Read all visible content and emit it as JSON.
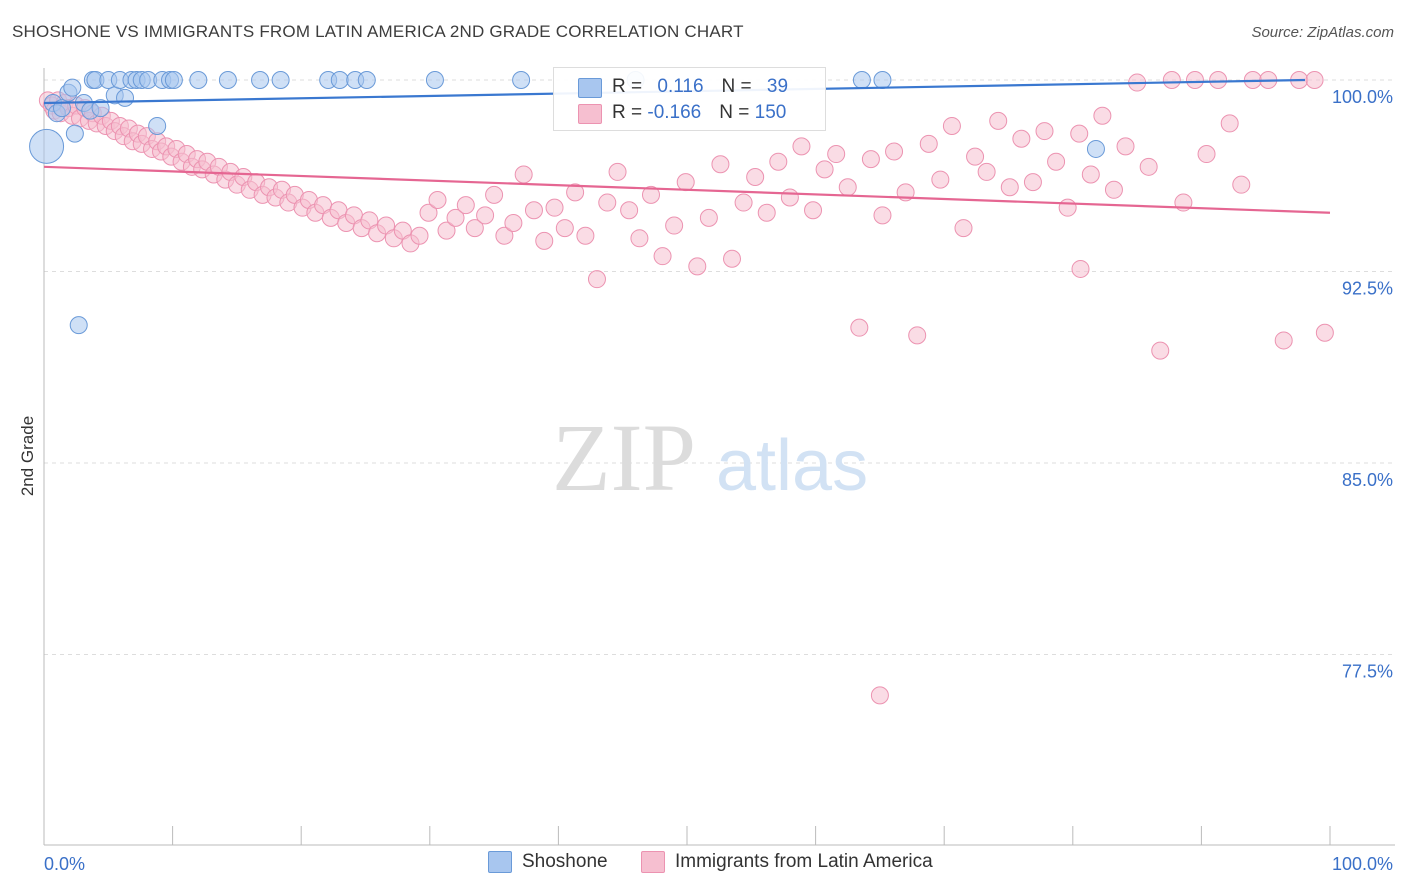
{
  "title": "SHOSHONE VS IMMIGRANTS FROM LATIN AMERICA 2ND GRADE CORRELATION CHART",
  "source": "Source: ZipAtlas.com",
  "watermark": {
    "zip": "ZIP",
    "atlas": "atlas"
  },
  "legend": {
    "rows": [
      {
        "r_label": "R = ",
        "r_value": "0.116",
        "n_label": "N = ",
        "n_value": "39"
      },
      {
        "r_label": "R = ",
        "r_value": "-0.166",
        "n_label": "N = ",
        "n_value": "150"
      }
    ]
  },
  "bottom_legend": [
    "Shoshone",
    "Immigrants from Latin America"
  ],
  "colors": {
    "blue_fill": "#a8c6ef",
    "blue_stroke": "#6a9ad8",
    "blue_line": "#3a78d0",
    "pink_fill": "#f6bfd0",
    "pink_stroke": "#ec93b1",
    "pink_line": "#e56692",
    "axis_label": "#3a70c8",
    "grid": "#dddddd"
  },
  "chart_data": {
    "type": "scatter",
    "title": "SHOSHONE VS IMMIGRANTS FROM LATIN AMERICA 2ND GRADE CORRELATION CHART",
    "xlabel": "",
    "ylabel": "2nd Grade",
    "xlim": [
      0,
      100
    ],
    "ylim": [
      70.0,
      101.0
    ],
    "x_tick_labels": [
      "0.0%",
      "100.0%"
    ],
    "y_ticks": [
      100.0,
      92.5,
      85.0,
      77.5
    ],
    "y_tick_labels": [
      "100.0%",
      "92.5%",
      "85.0%",
      "77.5%"
    ],
    "grid": true,
    "legend_position": "top-center",
    "series": [
      {
        "name": "Shoshone",
        "color": "#6a9ad8",
        "r": 0.116,
        "n": 39,
        "trend": [
          [
            0,
            99.1
          ],
          [
            100,
            100.0
          ]
        ],
        "points": [
          [
            0.2,
            97.4
          ],
          [
            0.7,
            99.1
          ],
          [
            1.0,
            98.7
          ],
          [
            1.4,
            98.9
          ],
          [
            1.9,
            99.5
          ],
          [
            2.2,
            99.7
          ],
          [
            2.4,
            97.9
          ],
          [
            2.7,
            90.4
          ],
          [
            3.1,
            99.1
          ],
          [
            3.6,
            98.8
          ],
          [
            3.8,
            100.0
          ],
          [
            4.0,
            100.0
          ],
          [
            4.4,
            98.9
          ],
          [
            5.0,
            100.0
          ],
          [
            5.5,
            99.4
          ],
          [
            5.9,
            100.0
          ],
          [
            6.3,
            99.3
          ],
          [
            6.8,
            100.0
          ],
          [
            7.2,
            100.0
          ],
          [
            7.6,
            100.0
          ],
          [
            8.1,
            100.0
          ],
          [
            8.8,
            98.2
          ],
          [
            9.2,
            100.0
          ],
          [
            9.8,
            100.0
          ],
          [
            10.1,
            100.0
          ],
          [
            12.0,
            100.0
          ],
          [
            14.3,
            100.0
          ],
          [
            16.8,
            100.0
          ],
          [
            18.4,
            100.0
          ],
          [
            22.1,
            100.0
          ],
          [
            23.0,
            100.0
          ],
          [
            24.2,
            100.0
          ],
          [
            25.1,
            100.0
          ],
          [
            30.4,
            100.0
          ],
          [
            37.1,
            100.0
          ],
          [
            46.0,
            100.0
          ],
          [
            63.6,
            100.0
          ],
          [
            65.2,
            100.0
          ],
          [
            81.8,
            97.3
          ]
        ]
      },
      {
        "name": "Immigrants from Latin America",
        "color": "#ec93b1",
        "r": -0.166,
        "n": 150,
        "trend": [
          [
            0,
            96.6
          ],
          [
            100,
            94.8
          ]
        ],
        "points": [
          [
            0.3,
            99.2
          ],
          [
            0.6,
            99.0
          ],
          [
            0.8,
            98.8
          ],
          [
            1.1,
            99.2
          ],
          [
            1.3,
            98.7
          ],
          [
            1.6,
            99.1
          ],
          [
            1.9,
            98.9
          ],
          [
            2.2,
            98.6
          ],
          [
            2.5,
            99.0
          ],
          [
            2.8,
            98.5
          ],
          [
            3.2,
            98.9
          ],
          [
            3.5,
            98.4
          ],
          [
            3.8,
            98.7
          ],
          [
            4.1,
            98.3
          ],
          [
            4.5,
            98.6
          ],
          [
            4.8,
            98.2
          ],
          [
            5.2,
            98.4
          ],
          [
            5.5,
            98.0
          ],
          [
            5.9,
            98.2
          ],
          [
            6.2,
            97.8
          ],
          [
            6.6,
            98.1
          ],
          [
            6.9,
            97.6
          ],
          [
            7.3,
            97.9
          ],
          [
            7.6,
            97.5
          ],
          [
            8.0,
            97.8
          ],
          [
            8.4,
            97.3
          ],
          [
            8.8,
            97.6
          ],
          [
            9.1,
            97.2
          ],
          [
            9.5,
            97.4
          ],
          [
            9.9,
            97.0
          ],
          [
            10.3,
            97.3
          ],
          [
            10.7,
            96.8
          ],
          [
            11.1,
            97.1
          ],
          [
            11.5,
            96.6
          ],
          [
            11.9,
            96.9
          ],
          [
            12.3,
            96.5
          ],
          [
            12.7,
            96.8
          ],
          [
            13.2,
            96.3
          ],
          [
            13.6,
            96.6
          ],
          [
            14.1,
            96.1
          ],
          [
            14.5,
            96.4
          ],
          [
            15.0,
            95.9
          ],
          [
            15.5,
            96.2
          ],
          [
            16.0,
            95.7
          ],
          [
            16.5,
            96.0
          ],
          [
            17.0,
            95.5
          ],
          [
            17.5,
            95.8
          ],
          [
            18.0,
            95.4
          ],
          [
            18.5,
            95.7
          ],
          [
            19.0,
            95.2
          ],
          [
            19.5,
            95.5
          ],
          [
            20.1,
            95.0
          ],
          [
            20.6,
            95.3
          ],
          [
            21.1,
            94.8
          ],
          [
            21.7,
            95.1
          ],
          [
            22.3,
            94.6
          ],
          [
            22.9,
            94.9
          ],
          [
            23.5,
            94.4
          ],
          [
            24.1,
            94.7
          ],
          [
            24.7,
            94.2
          ],
          [
            25.3,
            94.5
          ],
          [
            25.9,
            94.0
          ],
          [
            26.6,
            94.3
          ],
          [
            27.2,
            93.8
          ],
          [
            27.9,
            94.1
          ],
          [
            28.5,
            93.6
          ],
          [
            29.2,
            93.9
          ],
          [
            29.9,
            94.8
          ],
          [
            30.6,
            95.3
          ],
          [
            31.3,
            94.1
          ],
          [
            32.0,
            94.6
          ],
          [
            32.8,
            95.1
          ],
          [
            33.5,
            94.2
          ],
          [
            34.3,
            94.7
          ],
          [
            35.0,
            95.5
          ],
          [
            35.8,
            93.9
          ],
          [
            36.5,
            94.4
          ],
          [
            37.3,
            96.3
          ],
          [
            38.1,
            94.9
          ],
          [
            38.9,
            93.7
          ],
          [
            39.7,
            95.0
          ],
          [
            40.5,
            94.2
          ],
          [
            41.3,
            95.6
          ],
          [
            42.1,
            93.9
          ],
          [
            43.0,
            92.2
          ],
          [
            43.8,
            95.2
          ],
          [
            44.6,
            96.4
          ],
          [
            45.5,
            94.9
          ],
          [
            46.3,
            93.8
          ],
          [
            47.2,
            95.5
          ],
          [
            48.1,
            93.1
          ],
          [
            49.0,
            94.3
          ],
          [
            49.9,
            96.0
          ],
          [
            50.8,
            92.7
          ],
          [
            51.7,
            94.6
          ],
          [
            52.6,
            96.7
          ],
          [
            53.5,
            93.0
          ],
          [
            54.4,
            95.2
          ],
          [
            55.3,
            96.2
          ],
          [
            56.2,
            94.8
          ],
          [
            57.1,
            96.8
          ],
          [
            58.0,
            95.4
          ],
          [
            58.9,
            97.4
          ],
          [
            59.8,
            94.9
          ],
          [
            60.7,
            96.5
          ],
          [
            61.6,
            97.1
          ],
          [
            62.5,
            95.8
          ],
          [
            63.4,
            90.3
          ],
          [
            64.3,
            96.9
          ],
          [
            65.2,
            94.7
          ],
          [
            66.1,
            97.2
          ],
          [
            67.0,
            95.6
          ],
          [
            67.9,
            90.0
          ],
          [
            68.8,
            97.5
          ],
          [
            69.7,
            96.1
          ],
          [
            70.6,
            98.2
          ],
          [
            71.5,
            94.2
          ],
          [
            72.4,
            97.0
          ],
          [
            73.3,
            96.4
          ],
          [
            74.2,
            98.4
          ],
          [
            75.1,
            95.8
          ],
          [
            76.0,
            97.7
          ],
          [
            76.9,
            96.0
          ],
          [
            77.8,
            98.0
          ],
          [
            78.7,
            96.8
          ],
          [
            79.6,
            95.0
          ],
          [
            80.5,
            97.9
          ],
          [
            81.4,
            96.3
          ],
          [
            82.3,
            98.6
          ],
          [
            83.2,
            95.7
          ],
          [
            84.1,
            97.4
          ],
          [
            85.0,
            99.9
          ],
          [
            85.9,
            96.6
          ],
          [
            86.8,
            89.4
          ],
          [
            87.7,
            100.0
          ],
          [
            88.6,
            95.2
          ],
          [
            89.5,
            100.0
          ],
          [
            90.4,
            97.1
          ],
          [
            91.3,
            100.0
          ],
          [
            92.2,
            98.3
          ],
          [
            93.1,
            95.9
          ],
          [
            94.0,
            100.0
          ],
          [
            95.2,
            100.0
          ],
          [
            96.4,
            89.8
          ],
          [
            97.6,
            100.0
          ],
          [
            98.8,
            100.0
          ],
          [
            99.6,
            90.1
          ],
          [
            65.0,
            75.9
          ],
          [
            80.6,
            92.6
          ]
        ]
      }
    ]
  }
}
